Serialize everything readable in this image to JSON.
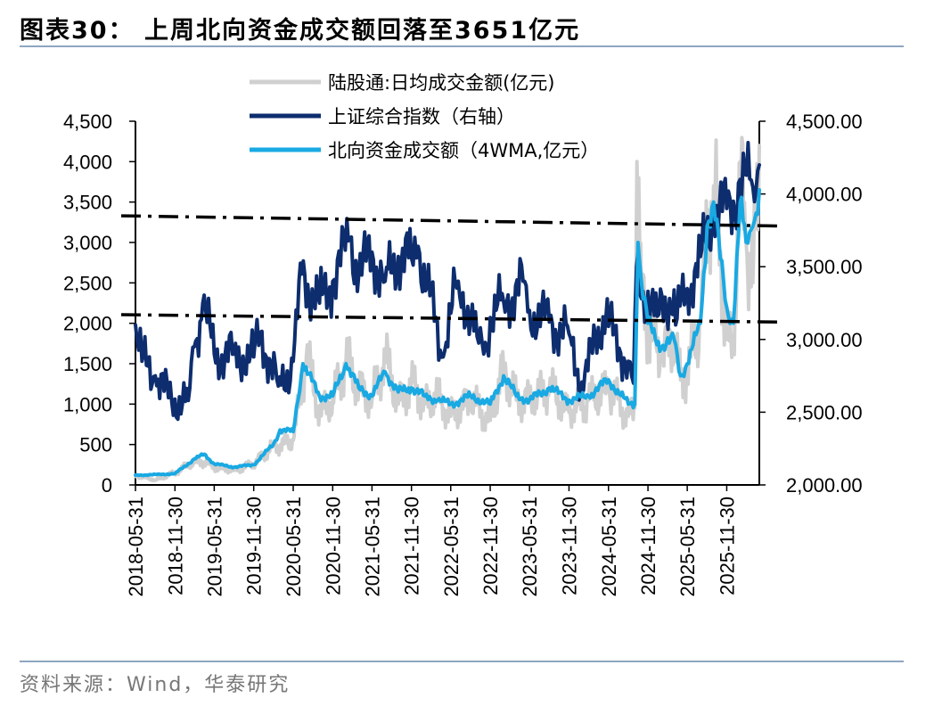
{
  "title": "图表30：  上周北向资金成交额回落至3651亿元",
  "source": "资料来源：Wind，华泰研究",
  "colors": {
    "daily": "#d0d0d0",
    "index": "#0d2d6e",
    "wma": "#19a9e3",
    "ref": "#000000",
    "rule": "#8ea6c2"
  },
  "chart_data": {
    "type": "line",
    "legend": [
      "陆股通:日均成交金额(亿元)",
      "上证综合指数（右轴）",
      "北向资金成交额（4WMA,亿元）"
    ],
    "legend_position": "top-center",
    "grid": false,
    "left_axis": {
      "ylim": [
        0,
        4500
      ],
      "ticks": [
        "0",
        "500",
        "1,000",
        "1,500",
        "2,000",
        "2,500",
        "3,000",
        "3,500",
        "4,000",
        "4,500"
      ]
    },
    "right_axis": {
      "ylim": [
        2000,
        4500
      ],
      "ticks": [
        "2,000.00",
        "2,500.00",
        "3,000.00",
        "3,500.00",
        "4,000.00",
        "4,500.00"
      ]
    },
    "x_ticks": [
      "2018-05-31",
      "2018-11-30",
      "2019-05-31",
      "2019-11-30",
      "2020-05-31",
      "2020-11-30",
      "2021-05-31",
      "2021-11-30",
      "2022-05-31",
      "2022-11-30",
      "2023-05-31",
      "2023-11-30",
      "2024-05-31",
      "2024-11-30",
      "2025-05-31",
      "2025-11-30"
    ],
    "x_start": "2018-05-31",
    "x_end": "2026-04-30",
    "series": [
      {
        "name": "陆股通:日均成交金额(亿元)",
        "axis": "left",
        "points": [
          [
            "2018-05-31",
            120
          ],
          [
            "2018-08-31",
            60
          ],
          [
            "2018-11-30",
            150
          ],
          [
            "2019-01-31",
            250
          ],
          [
            "2019-03-31",
            300
          ],
          [
            "2019-05-31",
            220
          ],
          [
            "2019-08-31",
            180
          ],
          [
            "2019-11-30",
            260
          ],
          [
            "2020-02-28",
            480
          ],
          [
            "2020-04-30",
            520
          ],
          [
            "2020-05-31",
            550
          ],
          [
            "2020-07-31",
            1600
          ],
          [
            "2020-09-30",
            900
          ],
          [
            "2020-11-30",
            1050
          ],
          [
            "2021-01-31",
            1550
          ],
          [
            "2021-03-31",
            1200
          ],
          [
            "2021-05-31",
            1050
          ],
          [
            "2021-07-31",
            1600
          ],
          [
            "2021-09-30",
            1000
          ],
          [
            "2021-11-30",
            1250
          ],
          [
            "2022-01-31",
            1000
          ],
          [
            "2022-03-31",
            1100
          ],
          [
            "2022-05-31",
            850
          ],
          [
            "2022-08-31",
            1050
          ],
          [
            "2022-11-30",
            800
          ],
          [
            "2023-01-31",
            1450
          ],
          [
            "2023-03-31",
            1050
          ],
          [
            "2023-05-31",
            1050
          ],
          [
            "2023-08-31",
            1200
          ],
          [
            "2023-11-30",
            900
          ],
          [
            "2024-02-29",
            1050
          ],
          [
            "2024-05-31",
            1200
          ],
          [
            "2024-08-31",
            850
          ],
          [
            "2024-09-30",
            950
          ],
          [
            "2024-10-10",
            4000
          ],
          [
            "2024-10-31",
            2400
          ],
          [
            "2024-11-30",
            1950
          ],
          [
            "2025-01-31",
            1600
          ],
          [
            "2025-03-31",
            1800
          ],
          [
            "2025-04-30",
            1300
          ],
          [
            "2025-05-31",
            1400
          ],
          [
            "2025-07-31",
            2000
          ],
          [
            "2025-08-31",
            3200
          ],
          [
            "2025-09-30",
            3700
          ],
          [
            "2025-10-31",
            2900
          ],
          [
            "2025-11-30",
            1800
          ],
          [
            "2025-12-31",
            1700
          ],
          [
            "2026-01-31",
            4000
          ],
          [
            "2026-02-28",
            3000
          ],
          [
            "2026-03-31",
            2500
          ],
          [
            "2026-04-30",
            4200
          ]
        ]
      },
      {
        "name": "上证综合指数（右轴）",
        "axis": "right",
        "points": [
          [
            "2018-05-31",
            3100
          ],
          [
            "2018-06-30",
            2850
          ],
          [
            "2018-08-31",
            2750
          ],
          [
            "2018-10-31",
            2600
          ],
          [
            "2018-11-30",
            2590
          ],
          [
            "2019-01-31",
            2580
          ],
          [
            "2019-02-28",
            2950
          ],
          [
            "2019-04-08",
            3250
          ],
          [
            "2019-05-31",
            2900
          ],
          [
            "2019-08-31",
            2900
          ],
          [
            "2019-11-30",
            2880
          ],
          [
            "2019-12-31",
            3050
          ],
          [
            "2020-03-23",
            2680
          ],
          [
            "2020-05-31",
            2850
          ],
          [
            "2020-07-10",
            3450
          ],
          [
            "2020-09-30",
            3250
          ],
          [
            "2020-11-30",
            3400
          ],
          [
            "2021-02-18",
            3700
          ],
          [
            "2021-03-31",
            3450
          ],
          [
            "2021-05-31",
            3600
          ],
          [
            "2021-07-31",
            3400
          ],
          [
            "2021-09-30",
            3570
          ],
          [
            "2021-11-30",
            3560
          ],
          [
            "2021-12-31",
            3640
          ],
          [
            "2022-04-26",
            2880
          ],
          [
            "2022-05-31",
            3180
          ],
          [
            "2022-07-05",
            3400
          ],
          [
            "2022-09-30",
            3020
          ],
          [
            "2022-10-31",
            2900
          ],
          [
            "2022-11-30",
            3150
          ],
          [
            "2023-01-31",
            3260
          ],
          [
            "2023-05-08",
            3400
          ],
          [
            "2023-05-31",
            3200
          ],
          [
            "2023-08-31",
            3120
          ],
          [
            "2023-11-30",
            3040
          ],
          [
            "2024-02-05",
            2650
          ],
          [
            "2024-03-31",
            3030
          ],
          [
            "2024-05-20",
            3170
          ],
          [
            "2024-05-31",
            3090
          ],
          [
            "2024-08-31",
            2850
          ],
          [
            "2024-09-24",
            2700
          ],
          [
            "2024-10-08",
            3500
          ],
          [
            "2024-10-31",
            3280
          ],
          [
            "2024-11-30",
            3330
          ],
          [
            "2025-01-13",
            3160
          ],
          [
            "2025-03-31",
            3340
          ],
          [
            "2025-04-07",
            3100
          ],
          [
            "2025-05-31",
            3350
          ],
          [
            "2025-07-31",
            3570
          ],
          [
            "2025-09-30",
            3850
          ],
          [
            "2025-11-30",
            3900
          ],
          [
            "2025-12-31",
            3950
          ],
          [
            "2026-01-31",
            4100
          ],
          [
            "2026-03-31",
            4050
          ],
          [
            "2026-04-30",
            4200
          ]
        ]
      },
      {
        "name": "北向资金成交额（4WMA,亿元）",
        "axis": "left",
        "points": [
          [
            "2018-05-31",
            120
          ],
          [
            "2018-09-30",
            130
          ],
          [
            "2018-11-30",
            140
          ],
          [
            "2019-02-28",
            320
          ],
          [
            "2019-04-15",
            380
          ],
          [
            "2019-05-31",
            260
          ],
          [
            "2019-08-31",
            220
          ],
          [
            "2019-11-30",
            250
          ],
          [
            "2020-02-29",
            500
          ],
          [
            "2020-03-31",
            680
          ],
          [
            "2020-05-31",
            660
          ],
          [
            "2020-07-15",
            1500
          ],
          [
            "2020-09-30",
            1100
          ],
          [
            "2020-11-30",
            1100
          ],
          [
            "2021-01-31",
            1500
          ],
          [
            "2021-03-31",
            1200
          ],
          [
            "2021-05-31",
            1100
          ],
          [
            "2021-07-31",
            1400
          ],
          [
            "2021-09-30",
            1150
          ],
          [
            "2021-11-30",
            1200
          ],
          [
            "2022-01-31",
            1100
          ],
          [
            "2022-03-31",
            1050
          ],
          [
            "2022-05-31",
            1000
          ],
          [
            "2022-08-31",
            1100
          ],
          [
            "2022-11-30",
            1000
          ],
          [
            "2023-01-31",
            1350
          ],
          [
            "2023-03-31",
            1100
          ],
          [
            "2023-05-31",
            1050
          ],
          [
            "2023-08-31",
            1200
          ],
          [
            "2023-11-30",
            1050
          ],
          [
            "2024-02-29",
            1100
          ],
          [
            "2024-05-31",
            1300
          ],
          [
            "2024-08-31",
            1000
          ],
          [
            "2024-09-30",
            1000
          ],
          [
            "2024-10-15",
            3000
          ],
          [
            "2024-10-31",
            2500
          ],
          [
            "2024-11-30",
            2000
          ],
          [
            "2025-01-31",
            1700
          ],
          [
            "2025-03-31",
            1800
          ],
          [
            "2025-04-30",
            1350
          ],
          [
            "2025-05-31",
            1500
          ],
          [
            "2025-07-31",
            2000
          ],
          [
            "2025-08-31",
            3200
          ],
          [
            "2025-09-30",
            3500
          ],
          [
            "2025-10-31",
            2800
          ],
          [
            "2025-11-30",
            2200
          ],
          [
            "2025-12-31",
            2000
          ],
          [
            "2026-01-31",
            3500
          ],
          [
            "2026-02-28",
            3000
          ],
          [
            "2026-03-31",
            3200
          ],
          [
            "2026-04-30",
            3651
          ]
        ]
      }
    ],
    "reference_lines": [
      {
        "axis": "right",
        "from": [
          "2018-05-31",
          3850
        ],
        "to": [
          "2026-04-30",
          3780
        ]
      },
      {
        "axis": "right",
        "from": [
          "2018-05-31",
          3170
        ],
        "to": [
          "2026-04-30",
          3120
        ]
      }
    ]
  }
}
